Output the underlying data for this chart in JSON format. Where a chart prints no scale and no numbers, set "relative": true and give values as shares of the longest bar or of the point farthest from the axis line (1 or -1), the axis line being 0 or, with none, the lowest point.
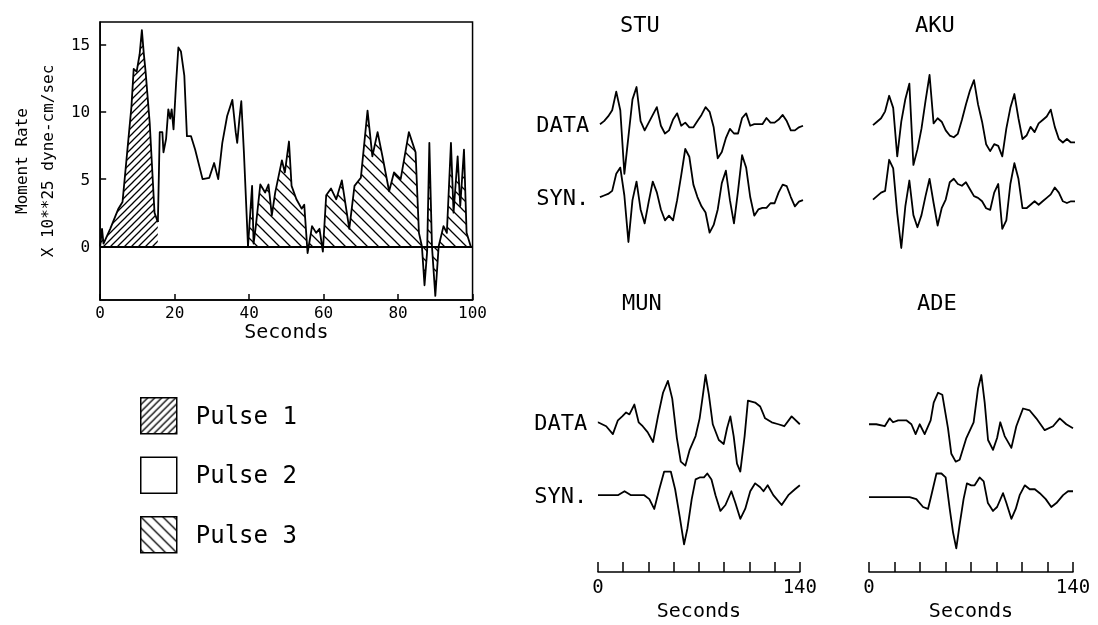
{
  "chart_data": [
    {
      "type": "area",
      "xlabel": "Seconds",
      "ylabel": "Moment Rate\nX 10**25 dyne-cm/sec",
      "xlim": [
        0,
        100
      ],
      "xticks": [
        0,
        20,
        40,
        60,
        80,
        100
      ],
      "ylim": [
        -4,
        16.7
      ],
      "yticks": [
        0,
        5,
        10,
        15
      ],
      "legend": "bottom left",
      "marker": "none",
      "ref_lines": [
        {
          "axis": "y",
          "value": 0
        }
      ],
      "series": [
        {
          "name": "Pulse 1",
          "color": "#000000",
          "x": [
            0,
            0.5,
            0.9,
            2.7,
            4.9,
            6,
            8.4,
            9,
            9.8,
            10.6,
            11.2,
            11.7,
            12.2,
            13.3,
            14.6,
            15.5
          ],
          "values": [
            0,
            1.3,
            0.2,
            1.3,
            2.8,
            3.3,
            10.4,
            13.2,
            13.0,
            14.3,
            16.1,
            14.4,
            13.0,
            9.2,
            2.5,
            1.8
          ]
        },
        {
          "name": "Pulse 2",
          "color": "#000000",
          "x": [
            15.5,
            16,
            16.7,
            17,
            17.7,
            18.3,
            18.8,
            19.2,
            19.7,
            20.4,
            21,
            21.7,
            22.6,
            23.3,
            24.4,
            25.5,
            27.5,
            29.3,
            30.6,
            31.7,
            32.8,
            34.1,
            35.5,
            36.4,
            36.8,
            37.4,
            37.9,
            38.6,
            39.7
          ],
          "values": [
            1.8,
            8.5,
            8.5,
            7.0,
            8.0,
            10.2,
            9.5,
            10.2,
            8.7,
            12.2,
            14.8,
            14.5,
            12.7,
            8.2,
            8.2,
            7.2,
            5.0,
            5.1,
            6.2,
            5.0,
            7.7,
            9.7,
            10.9,
            8.5,
            7.7,
            9.5,
            10.8,
            7.0,
            0
          ]
        },
        {
          "name": "Pulse 3",
          "color": "#000000",
          "x": [
            39.7,
            40.8,
            41.2,
            41.8,
            43,
            44.3,
            45.2,
            46.1,
            47,
            48.8,
            49.6,
            50.7,
            51.4,
            52.7,
            54.1,
            54.8,
            55.7,
            56.9,
            58,
            58.9,
            59.8,
            60.7,
            62,
            63.4,
            64.9,
            66.9,
            68.3,
            70,
            71.8,
            73.1,
            74.5,
            75.8,
            77.6,
            78.9,
            80.7,
            82.9,
            84.7,
            85.6,
            86.4,
            87.1,
            87.8,
            88.4,
            89.1,
            90,
            90.9,
            92.2,
            93.1,
            94.2,
            94.9,
            96,
            96.7,
            97.7,
            98.4,
            99.5
          ],
          "values": [
            0,
            4.5,
            0.2,
            1.5,
            4.6,
            4.0,
            4.6,
            2.3,
            4.0,
            6.4,
            5.5,
            7.8,
            4.5,
            3.5,
            2.8,
            3.1,
            -0.5,
            1.5,
            1.0,
            1.3,
            -0.4,
            3.8,
            4.3,
            3.5,
            4.9,
            1.3,
            4.5,
            5.1,
            10.1,
            6.7,
            8.5,
            6.7,
            4.1,
            5.5,
            5.0,
            8.5,
            7.0,
            1.0,
            0,
            -2.9,
            -0.4,
            7.7,
            0,
            -3.7,
            0,
            1.5,
            1.0,
            7.7,
            2.5,
            6.7,
            3.0,
            7.2,
            1.0,
            0
          ]
        }
      ]
    },
    {
      "type": "line",
      "title": "STU",
      "relative": true,
      "legend": "left",
      "categories": [
        null,
        null,
        null,
        null,
        null,
        null,
        null,
        null,
        null,
        null,
        null,
        null,
        null,
        null,
        null,
        null,
        null,
        null,
        null,
        null,
        null,
        null,
        null,
        null,
        null,
        null,
        null,
        null,
        null,
        null,
        null,
        null,
        null,
        null,
        null,
        null,
        null,
        null,
        null,
        null,
        null,
        null,
        null,
        null,
        null,
        null,
        null,
        null,
        null,
        null,
        null
      ],
      "series": [
        {
          "name": "DATA",
          "color": "#000000",
          "values": [
            0.76,
            0.78,
            0.81,
            0.85,
            0.97,
            0.85,
            0.44,
            0.68,
            0.92,
            1.0,
            0.78,
            0.72,
            0.77,
            0.82,
            0.87,
            0.75,
            0.7,
            0.72,
            0.79,
            0.83,
            0.75,
            0.77,
            0.74,
            0.74,
            0.78,
            0.82,
            0.87,
            0.84,
            0.74,
            0.54,
            0.58,
            0.67,
            0.73,
            0.7,
            0.7,
            0.8,
            0.83,
            0.75,
            0.76,
            0.76,
            0.76,
            0.8,
            0.77,
            0.77,
            0.79,
            0.82,
            0.78,
            0.72,
            0.72,
            0.74,
            0.75
          ]
        },
        {
          "name": "SYN.",
          "color": "#000000",
          "values": [
            0.29,
            0.3,
            0.31,
            0.33,
            0.44,
            0.48,
            0.3,
            0,
            0.27,
            0.39,
            0.21,
            0.12,
            0.26,
            0.39,
            0.32,
            0.21,
            0.14,
            0.17,
            0.14,
            0.27,
            0.43,
            0.6,
            0.55,
            0.37,
            0.29,
            0.23,
            0.19,
            0.06,
            0.11,
            0.21,
            0.38,
            0.46,
            0.27,
            0.12,
            0.33,
            0.56,
            0.48,
            0.29,
            0.17,
            0.21,
            0.22,
            0.22,
            0.25,
            0.25,
            0.32,
            0.37,
            0.36,
            0.29,
            0.23,
            0.26,
            0.27
          ]
        }
      ]
    },
    {
      "type": "line",
      "title": "AKU",
      "relative": true,
      "categories": [
        null,
        null,
        null,
        null,
        null,
        null,
        null,
        null,
        null,
        null,
        null,
        null,
        null,
        null,
        null,
        null,
        null,
        null,
        null,
        null,
        null,
        null,
        null,
        null,
        null,
        null,
        null,
        null,
        null,
        null,
        null,
        null,
        null,
        null,
        null,
        null,
        null,
        null,
        null,
        null,
        null,
        null,
        null,
        null,
        null,
        null,
        null,
        null,
        null,
        null,
        null
      ],
      "series": [
        {
          "color": "#000000",
          "values": [
            0.71,
            0.73,
            0.75,
            0.79,
            0.88,
            0.81,
            0.53,
            0.73,
            0.86,
            0.95,
            0.48,
            0.57,
            0.69,
            0.85,
            1.0,
            0.72,
            0.75,
            0.73,
            0.68,
            0.65,
            0.64,
            0.66,
            0.74,
            0.83,
            0.91,
            0.97,
            0.83,
            0.73,
            0.6,
            0.56,
            0.6,
            0.59,
            0.53,
            0.69,
            0.81,
            0.89,
            0.75,
            0.63,
            0.65,
            0.7,
            0.67,
            0.72,
            0.74,
            0.76,
            0.8,
            0.7,
            0.63,
            0.61,
            0.63,
            0.61,
            0.61
          ]
        },
        {
          "color": "#000000",
          "values": [
            0.28,
            0.3,
            0.32,
            0.33,
            0.51,
            0.46,
            0.2,
            0,
            0.24,
            0.39,
            0.19,
            0.12,
            0.19,
            0.3,
            0.4,
            0.26,
            0.13,
            0.23,
            0.28,
            0.38,
            0.4,
            0.37,
            0.36,
            0.38,
            0.34,
            0.3,
            0.29,
            0.27,
            0.23,
            0.22,
            0.32,
            0.37,
            0.11,
            0.16,
            0.37,
            0.49,
            0.4,
            0.23,
            0.23,
            0.25,
            0.27,
            0.25,
            0.27,
            0.29,
            0.31,
            0.35,
            0.32,
            0.27,
            0.26,
            0.27,
            0.27
          ]
        }
      ]
    },
    {
      "type": "line",
      "title": "MUN",
      "relative": true,
      "legend": "left",
      "xlim": [
        0,
        140
      ],
      "xticks": [
        0,
        {
          "value": 17.5,
          "label": null
        },
        {
          "value": 35,
          "label": null
        },
        {
          "value": 52.5,
          "label": null
        },
        {
          "value": 70,
          "label": null
        },
        {
          "value": 87.5,
          "label": null
        },
        {
          "value": 105,
          "label": null
        },
        {
          "value": 122.5,
          "label": null
        },
        140
      ],
      "xlabel": "Seconds",
      "series": [
        {
          "name": "DATA",
          "color": "#000000",
          "x": [
            0,
            5.7,
            10.3,
            13.8,
            16.8,
            19.5,
            21.8,
            25.2,
            28.2,
            31,
            34.4,
            38.2,
            41.6,
            45.1,
            48.5,
            51.5,
            54.7,
            57.4,
            60.6,
            63.6,
            67.7,
            70.5,
            72.8,
            74.6,
            76.9,
            79.6,
            83.8,
            87.2,
            89.5,
            91.8,
            94.1,
            96.4,
            98.7,
            101.7,
            104,
            109,
            112.5,
            115.9,
            120.5,
            125.1,
            129.2,
            134.3,
            140
          ],
          "values": [
            0.76,
            0.74,
            0.7,
            0.77,
            0.79,
            0.81,
            0.8,
            0.85,
            0.76,
            0.74,
            0.71,
            0.66,
            0.79,
            0.91,
            0.97,
            0.88,
            0.68,
            0.56,
            0.54,
            0.62,
            0.69,
            0.78,
            0.9,
            1.0,
            0.9,
            0.75,
            0.67,
            0.65,
            0.73,
            0.79,
            0.69,
            0.55,
            0.51,
            0.69,
            0.87,
            0.86,
            0.84,
            0.78,
            0.76,
            0.75,
            0.74,
            0.79,
            0.75
          ]
        },
        {
          "name": "SYN.",
          "color": "#000000",
          "x": [
            0,
            8,
            13.8,
            18.4,
            22.9,
            32.1,
            35.6,
            39,
            42.5,
            45.9,
            50.5,
            53.5,
            56.7,
            59.7,
            62,
            65,
            67.7,
            70.5,
            73.5,
            75.8,
            78.7,
            81.5,
            84.9,
            88.4,
            92.5,
            95.3,
            98.7,
            102.1,
            105.6,
            109,
            112.5,
            114.8,
            117.7,
            121.6,
            127.4,
            132,
            136.6,
            140
          ],
          "values": [
            0.39,
            0.39,
            0.39,
            0.41,
            0.39,
            0.39,
            0.37,
            0.32,
            0.42,
            0.51,
            0.51,
            0.42,
            0.28,
            0.14,
            0.22,
            0.37,
            0.47,
            0.48,
            0.48,
            0.5,
            0.47,
            0.39,
            0.31,
            0.34,
            0.41,
            0.35,
            0.27,
            0.32,
            0.41,
            0.45,
            0.43,
            0.41,
            0.44,
            0.39,
            0.34,
            0.39,
            0.42,
            0.44
          ]
        }
      ]
    },
    {
      "type": "line",
      "title": "ADE",
      "relative": true,
      "xlim": [
        0,
        140
      ],
      "xticks": [
        0,
        {
          "value": 17.5,
          "label": null
        },
        {
          "value": 35,
          "label": null
        },
        {
          "value": 52.5,
          "label": null
        },
        {
          "value": 70,
          "label": null
        },
        {
          "value": 87.5,
          "label": null
        },
        {
          "value": 105,
          "label": null
        },
        {
          "value": 122.5,
          "label": null
        },
        140
      ],
      "xlabel": "Seconds",
      "series": [
        {
          "color": "#000000",
          "x": [
            0,
            5,
            10.8,
            14.2,
            16.5,
            20,
            25.6,
            29.1,
            32,
            34.8,
            38.2,
            42.3,
            44.4,
            47.4,
            50.3,
            54.2,
            56.5,
            59.5,
            62.2,
            66.8,
            71.8,
            74.8,
            77.1,
            79.4,
            81.7,
            85.1,
            87.9,
            90.1,
            93.1,
            97.7,
            101.1,
            105.7,
            110.3,
            114.8,
            120.6,
            126.3,
            130.9,
            135.4,
            140
          ],
          "values": [
            0.75,
            0.75,
            0.74,
            0.78,
            0.76,
            0.77,
            0.77,
            0.75,
            0.7,
            0.75,
            0.7,
            0.77,
            0.86,
            0.91,
            0.9,
            0.73,
            0.6,
            0.56,
            0.57,
            0.68,
            0.76,
            0.93,
            1.0,
            0.86,
            0.67,
            0.62,
            0.68,
            0.76,
            0.69,
            0.63,
            0.74,
            0.83,
            0.82,
            0.78,
            0.72,
            0.74,
            0.78,
            0.75,
            0.73
          ]
        },
        {
          "color": "#000000",
          "x": [
            0,
            11.9,
            27.9,
            32.5,
            37.1,
            40.5,
            42.8,
            46.3,
            49.7,
            52.6,
            55.4,
            57.7,
            59.9,
            62.2,
            64.9,
            67.2,
            70.2,
            72.5,
            75.9,
            78.7,
            81.6,
            85.1,
            87.9,
            92,
            94.3,
            97.7,
            100.7,
            103.4,
            106.9,
            110.3,
            113.8,
            117.2,
            121.3,
            125.1,
            128.6,
            133.2,
            136.6,
            140
          ],
          "values": [
            0.38,
            0.38,
            0.38,
            0.37,
            0.33,
            0.32,
            0.39,
            0.5,
            0.5,
            0.48,
            0.32,
            0.2,
            0.12,
            0.24,
            0.37,
            0.45,
            0.44,
            0.44,
            0.48,
            0.46,
            0.35,
            0.31,
            0.33,
            0.4,
            0.35,
            0.27,
            0.32,
            0.39,
            0.44,
            0.42,
            0.42,
            0.4,
            0.37,
            0.33,
            0.35,
            0.39,
            0.41,
            0.41
          ]
        }
      ]
    }
  ]
}
